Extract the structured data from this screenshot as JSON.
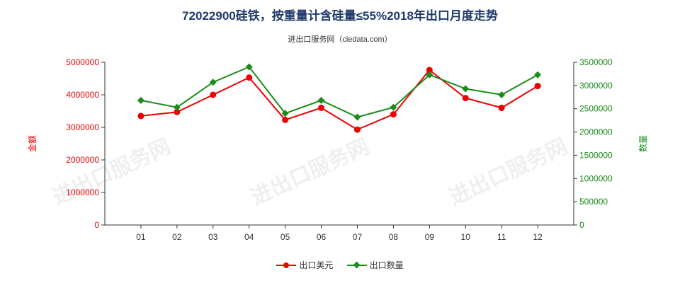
{
  "title": "72022900硅铁，按重量计含硅量≤55%2018年出口月度走势",
  "subtitle": "进出口服务网（ciedata.com）",
  "watermark": "进出口服务网",
  "colors": {
    "series_usd": "#ee0000",
    "series_qty": "#1a8c1a",
    "title": "#1f3a6b"
  },
  "chart_data": {
    "type": "line",
    "title": "72022900硅铁，按重量计含硅量≤55%2018年出口月度走势",
    "categories": [
      "01",
      "02",
      "03",
      "04",
      "05",
      "06",
      "07",
      "08",
      "09",
      "10",
      "11",
      "12"
    ],
    "left_axis": {
      "label": "金额",
      "ylim": [
        0,
        5000000
      ],
      "ticks": [
        "0",
        "1000000",
        "2000000",
        "3000000",
        "4000000",
        "5000000"
      ]
    },
    "right_axis": {
      "label": "数量",
      "ylim": [
        0,
        3500000
      ],
      "ticks": [
        "0",
        "500000",
        "1000000",
        "1500000",
        "2000000",
        "2500000",
        "3000000",
        "3500000"
      ]
    },
    "series": [
      {
        "name": "出口美元",
        "axis": "left",
        "marker": "circle",
        "values": [
          3350000,
          3470000,
          4000000,
          4530000,
          3230000,
          3600000,
          2930000,
          3400000,
          4760000,
          3900000,
          3600000,
          4270000
        ]
      },
      {
        "name": "出口数量",
        "axis": "right",
        "marker": "diamond",
        "values": [
          2680000,
          2530000,
          3070000,
          3400000,
          2400000,
          2680000,
          2320000,
          2530000,
          3230000,
          2930000,
          2800000,
          3230000
        ]
      }
    ],
    "grid": false,
    "legend_position": "bottom"
  }
}
